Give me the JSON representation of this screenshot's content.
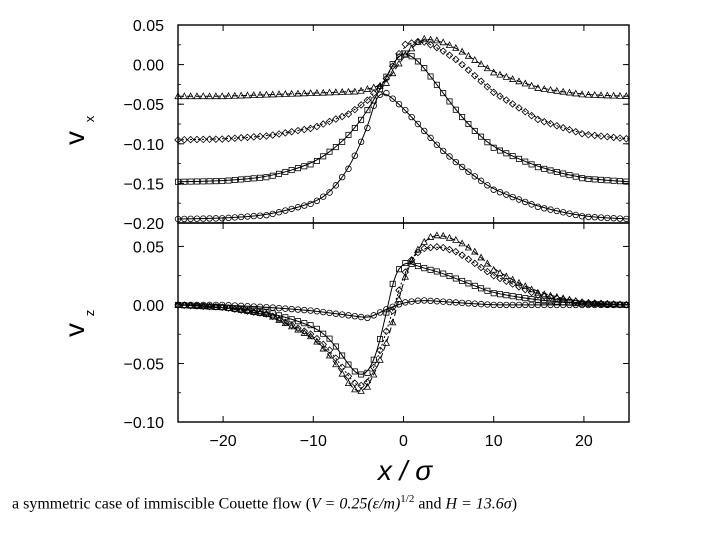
{
  "chart_data": [
    {
      "type": "scatter",
      "panel": "top",
      "ylabel": "v",
      "ylabel_subscript": "x",
      "ylim": [
        -0.2,
        0.05
      ],
      "xlim": [
        -25,
        25
      ],
      "yticks": [
        0.05,
        0.0,
        -0.05,
        -0.1,
        -0.15,
        -0.2
      ],
      "ytick_labels": [
        "0.05",
        "0.00",
        "−0.05",
        "−0.10",
        "−0.15",
        "−0.20"
      ],
      "series": [
        {
          "name": "triangles",
          "marker": "triangle",
          "x": [
            -25,
            -20,
            -15,
            -10,
            -5,
            -2,
            0,
            2,
            4,
            6,
            8,
            10,
            15,
            20,
            25
          ],
          "y": [
            -0.04,
            -0.04,
            -0.038,
            -0.036,
            -0.034,
            -0.025,
            0.01,
            0.033,
            0.03,
            0.02,
            0.005,
            -0.01,
            -0.03,
            -0.038,
            -0.04
          ]
        },
        {
          "name": "diamonds",
          "marker": "diamond",
          "x": [
            -25,
            -20,
            -15,
            -10,
            -6,
            -4,
            -2,
            0,
            2,
            4,
            6,
            8,
            10,
            15,
            20,
            25
          ],
          "y": [
            -0.095,
            -0.094,
            -0.09,
            -0.08,
            -0.062,
            -0.045,
            -0.02,
            0.025,
            0.03,
            0.02,
            0.005,
            -0.015,
            -0.035,
            -0.07,
            -0.088,
            -0.094
          ]
        },
        {
          "name": "squares",
          "marker": "square",
          "x": [
            -25,
            -20,
            -15,
            -10,
            -7,
            -5,
            -3,
            -1,
            0,
            1,
            2,
            4,
            6,
            8,
            10,
            15,
            20,
            25
          ],
          "y": [
            -0.148,
            -0.147,
            -0.142,
            -0.125,
            -0.1,
            -0.075,
            -0.04,
            0.005,
            0.015,
            0.01,
            0.0,
            -0.03,
            -0.06,
            -0.085,
            -0.105,
            -0.13,
            -0.144,
            -0.148
          ]
        },
        {
          "name": "circles",
          "marker": "circle",
          "x": [
            -25,
            -20,
            -15,
            -10,
            -8,
            -6,
            -4,
            -3,
            -2,
            0,
            2,
            4,
            6,
            8,
            10,
            15,
            20,
            25
          ],
          "y": [
            -0.195,
            -0.194,
            -0.19,
            -0.175,
            -0.16,
            -0.13,
            -0.08,
            -0.04,
            -0.035,
            -0.055,
            -0.08,
            -0.105,
            -0.125,
            -0.142,
            -0.158,
            -0.18,
            -0.192,
            -0.195
          ]
        }
      ]
    },
    {
      "type": "scatter",
      "panel": "bottom",
      "ylabel": "v",
      "ylabel_subscript": "z",
      "xlabel": "x / σ",
      "ylim": [
        -0.1,
        0.07
      ],
      "xlim": [
        -25,
        25
      ],
      "yticks": [
        0.05,
        0.0,
        -0.05,
        -0.1
      ],
      "ytick_labels": [
        "0.05",
        "0.00",
        "−0.05",
        "−0.10"
      ],
      "xticks": [
        -20,
        -10,
        0,
        10,
        20
      ],
      "xtick_labels": [
        "−20",
        "−10",
        "0",
        "10",
        "20"
      ],
      "series": [
        {
          "name": "triangles",
          "marker": "triangle",
          "x": [
            -25,
            -20,
            -15,
            -10,
            -8,
            -6,
            -5,
            -4,
            -3,
            -2,
            -1,
            0,
            1,
            2,
            3,
            4,
            6,
            8,
            10,
            15,
            20,
            25
          ],
          "y": [
            0.0,
            -0.002,
            -0.008,
            -0.028,
            -0.045,
            -0.068,
            -0.075,
            -0.07,
            -0.055,
            -0.035,
            -0.01,
            0.02,
            0.04,
            0.052,
            0.058,
            0.06,
            0.055,
            0.045,
            0.03,
            0.01,
            0.002,
            0.0
          ]
        },
        {
          "name": "diamonds",
          "marker": "diamond",
          "x": [
            -25,
            -20,
            -15,
            -10,
            -8,
            -6,
            -5,
            -4,
            -3,
            -2,
            -1,
            0,
            1,
            2,
            4,
            6,
            8,
            10,
            15,
            20,
            25
          ],
          "y": [
            0.0,
            -0.002,
            -0.008,
            -0.026,
            -0.04,
            -0.062,
            -0.07,
            -0.066,
            -0.048,
            -0.025,
            0.0,
            0.025,
            0.04,
            0.048,
            0.05,
            0.045,
            0.035,
            0.025,
            0.008,
            0.002,
            0.0
          ]
        },
        {
          "name": "squares",
          "marker": "square",
          "x": [
            -25,
            -20,
            -15,
            -10,
            -8,
            -6,
            -5,
            -4,
            -3,
            -2,
            -1,
            0,
            1,
            2,
            4,
            6,
            8,
            10,
            15,
            20,
            25
          ],
          "y": [
            0.0,
            -0.002,
            -0.006,
            -0.018,
            -0.03,
            -0.052,
            -0.06,
            -0.058,
            -0.042,
            -0.01,
            0.025,
            0.036,
            0.035,
            0.032,
            0.028,
            0.022,
            0.016,
            0.01,
            0.004,
            0.001,
            0.0
          ]
        },
        {
          "name": "circles",
          "marker": "circle",
          "x": [
            -25,
            -20,
            -15,
            -10,
            -8,
            -6,
            -4,
            -3,
            -2,
            0,
            2,
            4,
            6,
            8,
            10,
            15,
            20,
            25
          ],
          "y": [
            0.0,
            0.0,
            -0.002,
            -0.005,
            -0.007,
            -0.009,
            -0.011,
            -0.008,
            -0.004,
            0.002,
            0.004,
            0.003,
            0.002,
            0.001,
            0.0,
            0.0,
            0.0,
            0.0
          ]
        }
      ]
    }
  ],
  "caption": {
    "prefix": "a symmetric case of immiscible Couette flow (",
    "formula": "V = 0.25(ε/m)",
    "exponent": "1/2",
    "middle": " and ",
    "formula2": "H = 13.6σ",
    "suffix": ")"
  }
}
